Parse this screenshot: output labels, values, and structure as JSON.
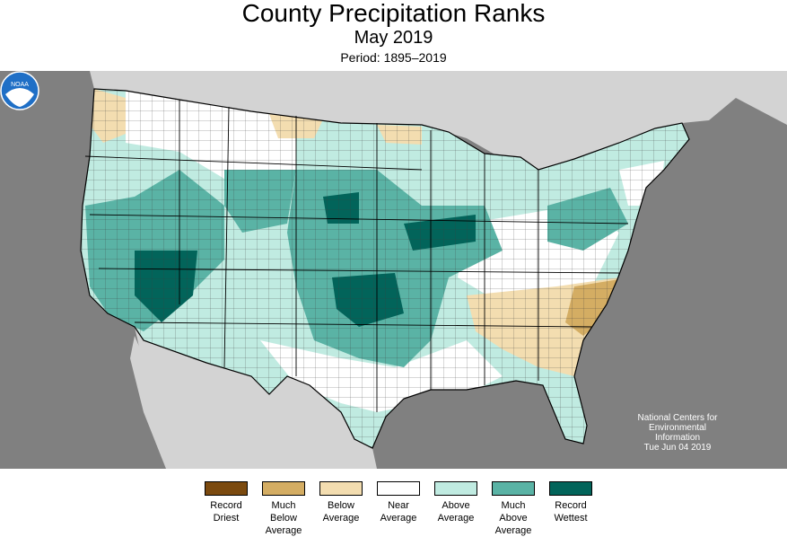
{
  "header": {
    "title": "County Precipitation Ranks",
    "subtitle": "May 2019",
    "period": "Period: 1895–2019"
  },
  "legend": {
    "items": [
      {
        "label": "Record\nDriest",
        "color": "#7b4a0f"
      },
      {
        "label": "Much\nBelow\nAverage",
        "color": "#d4ad63"
      },
      {
        "label": "Below\nAverage",
        "color": "#f3ddb0"
      },
      {
        "label": "Near\nAverage",
        "color": "#ffffff"
      },
      {
        "label": "Above\nAverage",
        "color": "#c0ebe1"
      },
      {
        "label": "Much\nAbove\nAverage",
        "color": "#5ab3a5"
      },
      {
        "label": "Record\nWettest",
        "color": "#02645a"
      }
    ]
  },
  "credit": {
    "logo_text": "NOAA",
    "lines": [
      "National Centers for",
      "Environmental",
      "Information",
      "Tue Jun 04 2019"
    ]
  },
  "colors": {
    "ocean": "#808080",
    "land_outside": "#d3d3d3",
    "county_border": "#3c3c3c",
    "state_border": "#000000",
    "noaa_blue": "#1f6fc6"
  }
}
